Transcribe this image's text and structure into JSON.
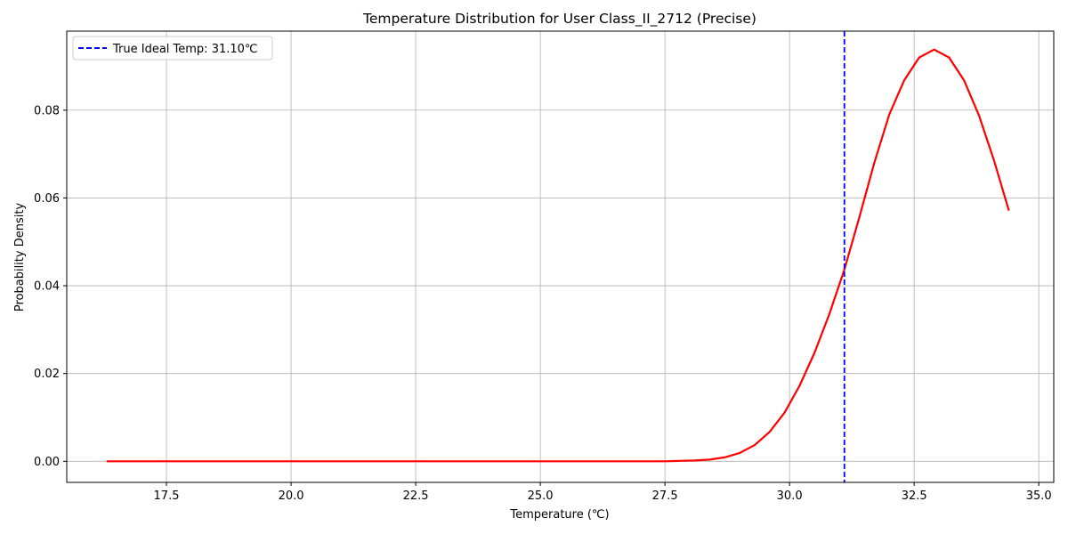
{
  "chart_data": {
    "type": "line",
    "title": "Temperature Distribution for User Class_II_2712 (Precise)",
    "xlabel": "Temperature (℃)",
    "ylabel": "Probability Density",
    "xlim": [
      15.5,
      35.3
    ],
    "ylim": [
      -0.0048,
      0.098
    ],
    "xticks": [
      17.5,
      20.0,
      22.5,
      25.0,
      27.5,
      30.0,
      32.5,
      35.0
    ],
    "xtick_labels": [
      "17.5",
      "20.0",
      "22.5",
      "25.0",
      "27.5",
      "30.0",
      "32.5",
      "35.0"
    ],
    "yticks": [
      0.0,
      0.02,
      0.04,
      0.06,
      0.08
    ],
    "ytick_labels": [
      "0.00",
      "0.02",
      "0.04",
      "0.06",
      "0.08"
    ],
    "grid": true,
    "legend": {
      "placement": "top-left"
    },
    "series": [
      {
        "name": "",
        "color": "#ff0000",
        "style": "solid",
        "x": [
          16.3,
          17.0,
          18.0,
          19.0,
          20.0,
          21.0,
          22.0,
          23.0,
          24.0,
          25.0,
          26.0,
          27.0,
          27.5,
          27.8,
          28.1,
          28.4,
          28.7,
          29.0,
          29.3,
          29.6,
          29.9,
          30.2,
          30.5,
          30.8,
          31.1,
          31.4,
          31.7,
          32.0,
          32.3,
          32.6,
          32.9,
          33.2,
          33.5,
          33.8,
          34.1,
          34.4
        ],
        "y": [
          0.0,
          0.0,
          0.0,
          0.0,
          0.0,
          0.0,
          0.0,
          0.0,
          0.0,
          0.0,
          0.0,
          0.0,
          0.0,
          0.0001,
          0.0002,
          0.0004,
          0.0009,
          0.0019,
          0.0037,
          0.0067,
          0.0111,
          0.0172,
          0.0247,
          0.0336,
          0.0437,
          0.0556,
          0.068,
          0.079,
          0.0868,
          0.092,
          0.0938,
          0.092,
          0.0868,
          0.0788,
          0.0686,
          0.0571
        ]
      },
      {
        "name": "True Ideal Temp: 31.10℃",
        "color": "#0000ff",
        "style": "dashed",
        "vline_x": 31.1
      }
    ]
  }
}
